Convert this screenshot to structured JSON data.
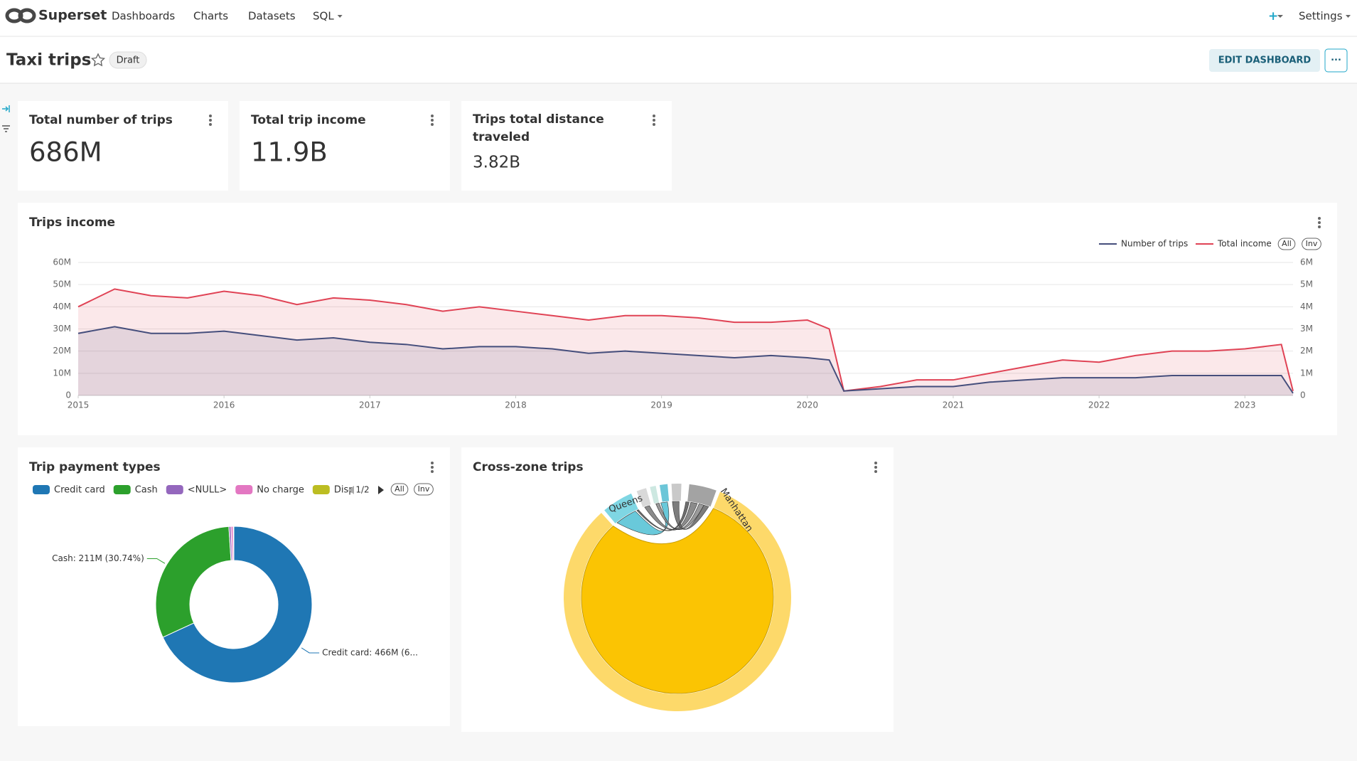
{
  "navbar": {
    "brand": "Superset",
    "items": [
      "Dashboards",
      "Charts",
      "Datasets",
      "SQL"
    ],
    "plus": "+",
    "settings": "Settings"
  },
  "header": {
    "title": "Taxi trips",
    "badge": "Draft",
    "edit_button": "EDIT DASHBOARD",
    "more_button": "···"
  },
  "kpis": [
    {
      "title": "Total number of trips",
      "value": "686M"
    },
    {
      "title": "Total trip income",
      "value": "11.9B"
    },
    {
      "title": "Trips total distance traveled",
      "value": "3.82B"
    }
  ],
  "chart_data": [
    {
      "type": "line",
      "title": "Trips income",
      "area": true,
      "grid": true,
      "x": [
        2015,
        2015.25,
        2015.5,
        2015.75,
        2016,
        2016.25,
        2016.5,
        2016.75,
        2017,
        2017.25,
        2017.5,
        2017.75,
        2018,
        2018.25,
        2018.5,
        2018.75,
        2019,
        2019.25,
        2019.5,
        2019.75,
        2020,
        2020.15,
        2020.25,
        2020.5,
        2020.75,
        2021,
        2021.25,
        2021.5,
        2021.75,
        2022,
        2022.25,
        2022.5,
        2022.75,
        2023,
        2023.25,
        2023.33
      ],
      "xlim": [
        2015,
        2023.33
      ],
      "xticks": [
        2015,
        2016,
        2017,
        2018,
        2019,
        2020,
        2021,
        2022,
        2023
      ],
      "ylim": [
        0,
        60000000
      ],
      "yticks": [
        0,
        {
          "value": 10000000,
          "label": "10M"
        },
        {
          "value": 20000000,
          "label": "20M"
        },
        {
          "value": 30000000,
          "label": "30M"
        },
        {
          "value": 40000000,
          "label": "40M"
        },
        {
          "value": 50000000,
          "label": "50M"
        },
        {
          "value": 60000000,
          "label": "60M"
        }
      ],
      "y2lim": [
        0,
        6000000
      ],
      "y2ticks": [
        0,
        {
          "value": 1000000,
          "label": "1M"
        },
        {
          "value": 2000000,
          "label": "2M"
        },
        {
          "value": 3000000,
          "label": "3M"
        },
        {
          "value": 4000000,
          "label": "4M"
        },
        {
          "value": 5000000,
          "label": "5M"
        },
        {
          "value": 6000000,
          "label": "6M"
        }
      ],
      "legend_buttons": [
        "All",
        "Inv"
      ],
      "series": [
        {
          "name": "Number of trips",
          "color": "#454e7c",
          "axis": "y2",
          "values": [
            2800000,
            3100000,
            2800000,
            2800000,
            2900000,
            2700000,
            2500000,
            2600000,
            2400000,
            2300000,
            2100000,
            2200000,
            2200000,
            2100000,
            1900000,
            2000000,
            1900000,
            1800000,
            1700000,
            1800000,
            1700000,
            1600000,
            200000,
            300000,
            400000,
            400000,
            600000,
            700000,
            800000,
            800000,
            800000,
            900000,
            900000,
            900000,
            900000,
            100000
          ]
        },
        {
          "name": "Total income",
          "color": "#e04355",
          "values": [
            40000000,
            48000000,
            45000000,
            44000000,
            47000000,
            45000000,
            41000000,
            44000000,
            43000000,
            41000000,
            38000000,
            40000000,
            38000000,
            36000000,
            34000000,
            36000000,
            36000000,
            35000000,
            33000000,
            33000000,
            34000000,
            30000000,
            2000000,
            4000000,
            7000000,
            7000000,
            10000000,
            13000000,
            16000000,
            15000000,
            18000000,
            20000000,
            20000000,
            21000000,
            23000000,
            2000000
          ]
        }
      ]
    },
    {
      "type": "pie",
      "title": "Trip payment types",
      "donut": true,
      "categories": [
        "Credit card",
        "Cash",
        "<NULL>",
        "No charge",
        "Disp"
      ],
      "values": [
        466000000,
        211000000,
        3000000,
        3000000,
        1000000
      ],
      "value_labels": [
        "Credit card: 466M (6...",
        "Cash: 211M (30.74%)",
        null,
        null,
        null
      ],
      "colors": [
        "#1f77b4",
        "#2ca02c",
        "#9467bd",
        "#e377c2",
        "#bcbd22"
      ],
      "legend_page": "1/2",
      "legend_buttons": [
        "All",
        "Inv"
      ]
    }
  ],
  "cross_zone": {
    "title": "Cross-zone trips",
    "labels": [
      "Queens",
      "Manhattan"
    ]
  }
}
